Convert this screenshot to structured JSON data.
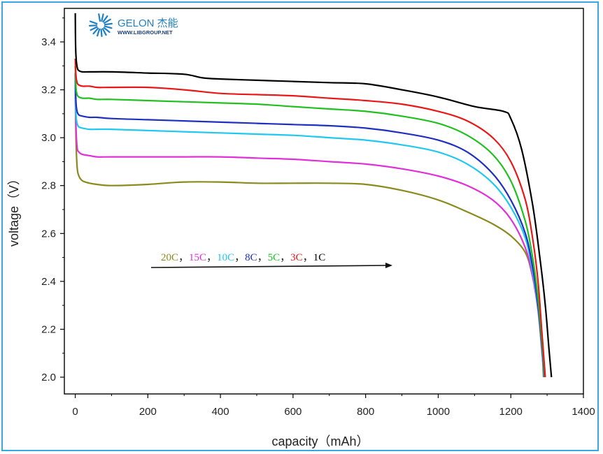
{
  "watermark": {
    "brand": "GELON 杰能",
    "url": "WWW.LIBGROUP.NET",
    "icon": "sunburst-logo-icon",
    "color": "#1f7fc4"
  },
  "chart_data": {
    "type": "line",
    "xlabel": "capacity（mAh）",
    "ylabel": "voltage（V）",
    "xlim": [
      -30,
      1400
    ],
    "ylim": [
      1.93,
      3.54
    ],
    "xticks": [
      0,
      200,
      400,
      600,
      800,
      1000,
      1200,
      1400
    ],
    "yticks": [
      2.0,
      2.2,
      2.4,
      2.6,
      2.8,
      3.0,
      3.2,
      3.4
    ],
    "xtick_labels": [
      "0",
      "200",
      "400",
      "600",
      "800",
      "1000",
      "1200",
      "1400"
    ],
    "ytick_labels": [
      "2.0",
      "2.2",
      "2.4",
      "2.6",
      "2.8",
      "3.0",
      "3.2",
      "3.4"
    ],
    "grid": false,
    "legend": {
      "placement": "center-left",
      "arrow": true,
      "items": [
        {
          "label": "20C",
          "color": "#8a8a1e"
        },
        {
          "label": "15C",
          "color": "#e030d8"
        },
        {
          "label": "10C",
          "color": "#20c8f0"
        },
        {
          "label": "8C",
          "color": "#1f2fc0"
        },
        {
          "label": "5C",
          "color": "#20c020"
        },
        {
          "label": "3C",
          "color": "#e81818"
        },
        {
          "label": "1C",
          "color": "#000000"
        }
      ],
      "separator": "，"
    },
    "series": [
      {
        "name": "20C",
        "color": "#8a8a1e",
        "x": [
          0,
          2,
          5,
          10,
          20,
          40,
          60,
          100,
          200,
          300,
          400,
          500,
          600,
          700,
          800,
          900,
          1000,
          1080,
          1150,
          1200,
          1240,
          1260,
          1275,
          1285,
          1290
        ],
        "y": [
          3.2,
          3.0,
          2.88,
          2.84,
          2.82,
          2.81,
          2.805,
          2.8,
          2.805,
          2.815,
          2.815,
          2.81,
          2.81,
          2.81,
          2.805,
          2.78,
          2.74,
          2.69,
          2.64,
          2.59,
          2.52,
          2.42,
          2.3,
          2.15,
          2.0
        ]
      },
      {
        "name": "15C",
        "color": "#e030d8",
        "x": [
          0,
          2,
          5,
          10,
          20,
          40,
          60,
          100,
          200,
          300,
          400,
          500,
          600,
          700,
          800,
          900,
          1000,
          1080,
          1150,
          1200,
          1240,
          1260,
          1275,
          1285,
          1292
        ],
        "y": [
          3.22,
          3.05,
          2.96,
          2.94,
          2.93,
          2.925,
          2.92,
          2.92,
          2.92,
          2.92,
          2.92,
          2.915,
          2.91,
          2.9,
          2.89,
          2.87,
          2.84,
          2.8,
          2.74,
          2.66,
          2.54,
          2.42,
          2.28,
          2.12,
          2.0
        ]
      },
      {
        "name": "10C",
        "color": "#20c8f0",
        "x": [
          0,
          2,
          5,
          10,
          20,
          40,
          60,
          100,
          200,
          300,
          400,
          500,
          600,
          700,
          800,
          900,
          1000,
          1080,
          1150,
          1200,
          1240,
          1260,
          1275,
          1285,
          1292
        ],
        "y": [
          3.24,
          3.1,
          3.06,
          3.045,
          3.04,
          3.035,
          3.035,
          3.035,
          3.03,
          3.025,
          3.02,
          3.015,
          3.01,
          3.0,
          2.99,
          2.97,
          2.94,
          2.89,
          2.81,
          2.71,
          2.58,
          2.44,
          2.29,
          2.13,
          2.0
        ]
      },
      {
        "name": "8C",
        "color": "#1f2fc0",
        "x": [
          0,
          2,
          5,
          10,
          20,
          40,
          60,
          100,
          200,
          300,
          400,
          500,
          600,
          700,
          800,
          900,
          1000,
          1080,
          1150,
          1200,
          1240,
          1260,
          1275,
          1285,
          1293
        ],
        "y": [
          3.27,
          3.15,
          3.11,
          3.095,
          3.09,
          3.085,
          3.085,
          3.08,
          3.075,
          3.07,
          3.065,
          3.06,
          3.055,
          3.05,
          3.04,
          3.02,
          2.99,
          2.94,
          2.85,
          2.74,
          2.6,
          2.46,
          2.3,
          2.14,
          2.0
        ]
      },
      {
        "name": "5C",
        "color": "#20c020",
        "x": [
          0,
          2,
          5,
          10,
          20,
          40,
          60,
          100,
          200,
          300,
          400,
          500,
          600,
          700,
          800,
          900,
          1000,
          1080,
          1150,
          1200,
          1240,
          1260,
          1275,
          1285,
          1294
        ],
        "y": [
          3.3,
          3.21,
          3.18,
          3.17,
          3.165,
          3.165,
          3.16,
          3.16,
          3.155,
          3.15,
          3.145,
          3.14,
          3.13,
          3.12,
          3.11,
          3.09,
          3.06,
          3.01,
          2.93,
          2.82,
          2.65,
          2.5,
          2.33,
          2.16,
          2.0
        ]
      },
      {
        "name": "3C",
        "color": "#e81818",
        "x": [
          0,
          2,
          5,
          10,
          20,
          40,
          60,
          100,
          200,
          300,
          400,
          500,
          600,
          700,
          800,
          900,
          1000,
          1080,
          1150,
          1200,
          1240,
          1260,
          1275,
          1285,
          1295
        ],
        "y": [
          3.33,
          3.26,
          3.23,
          3.22,
          3.215,
          3.215,
          3.21,
          3.21,
          3.21,
          3.2,
          3.185,
          3.18,
          3.175,
          3.165,
          3.155,
          3.14,
          3.11,
          3.07,
          3.0,
          2.9,
          2.74,
          2.58,
          2.4,
          2.2,
          2.0
        ]
      },
      {
        "name": "1C",
        "color": "#000000",
        "x": [
          0,
          1,
          3,
          6,
          10,
          20,
          40,
          100,
          200,
          300,
          350,
          400,
          500,
          600,
          700,
          800,
          900,
          1000,
          1100,
          1180,
          1200,
          1230,
          1260,
          1280,
          1295,
          1305,
          1312
        ],
        "y": [
          3.52,
          3.38,
          3.32,
          3.29,
          3.28,
          3.275,
          3.275,
          3.275,
          3.27,
          3.265,
          3.25,
          3.245,
          3.24,
          3.235,
          3.23,
          3.225,
          3.2,
          3.17,
          3.13,
          3.11,
          3.08,
          2.95,
          2.72,
          2.5,
          2.3,
          2.12,
          2.0
        ]
      }
    ]
  }
}
